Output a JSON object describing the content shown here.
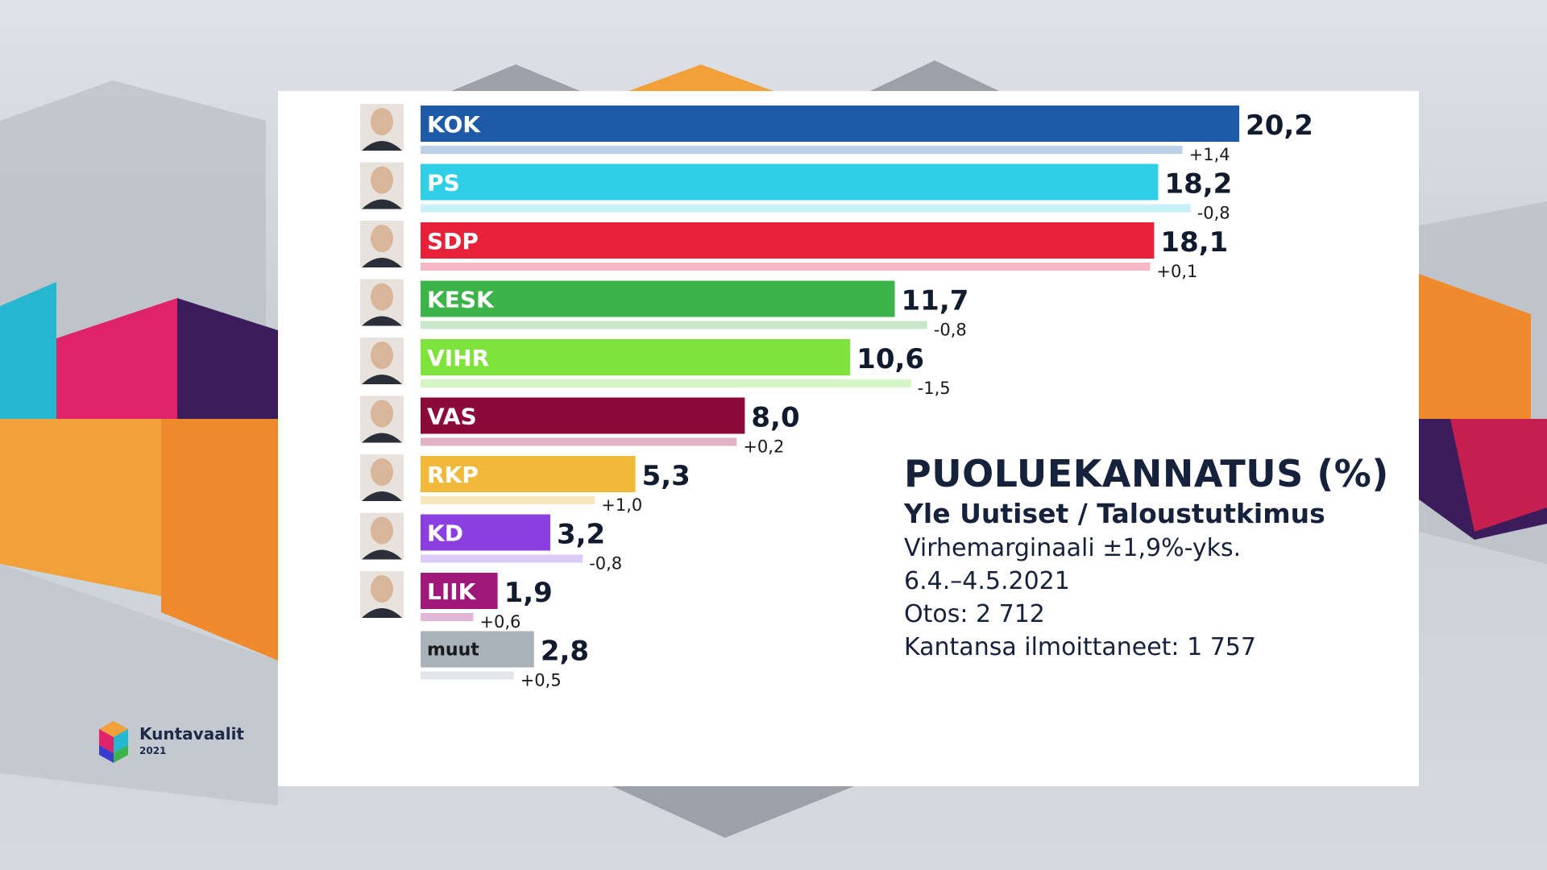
{
  "info": {
    "title": "PUOLUEKANNATUS (%)",
    "source": "Yle Uutiset / Taloustutkimus",
    "margin": "Virhemarginaali ±1,9%-yks.",
    "period": "6.4.–4.5.2021",
    "sample": "Otos: 2 712",
    "declared": "Kantansa ilmoittaneet: 1 757"
  },
  "logo": {
    "name": "Kuntavaalit",
    "year": "2021"
  },
  "chart_data": {
    "type": "bar",
    "orientation": "horizontal",
    "categories": [
      "KOK",
      "PS",
      "SDP",
      "KESK",
      "VIHR",
      "VAS",
      "RKP",
      "KD",
      "LIIK",
      "muut"
    ],
    "values": [
      20.2,
      18.2,
      18.1,
      11.7,
      10.6,
      8.0,
      5.3,
      3.2,
      1.9,
      2.8
    ],
    "value_labels": [
      "20,2",
      "18,2",
      "18,1",
      "11,7",
      "10,6",
      "8,0",
      "5,3",
      "3,2",
      "1,9",
      "2,8"
    ],
    "changes": [
      1.4,
      -0.8,
      0.1,
      -0.8,
      -1.5,
      0.2,
      1.0,
      -0.8,
      0.6,
      0.5
    ],
    "change_labels": [
      "+1,4",
      "-0,8",
      "+0,1",
      "-0,8",
      "-1,5",
      "+0,2",
      "+1,0",
      "-0,8",
      "+0,6",
      "+0,5"
    ],
    "colors": [
      "#1f5aa8",
      "#2fd0e6",
      "#e8213a",
      "#3cb44a",
      "#7ee33b",
      "#8c0a3a",
      "#f0b93a",
      "#8c3fe0",
      "#a0197a",
      "#a9b2b8"
    ],
    "prev_colors": [
      "#bcd0ea",
      "#c8f0f6",
      "#f4b9c4",
      "#c8e8c9",
      "#d5f5c2",
      "#e2b3c7",
      "#f8e6bd",
      "#dccbf6",
      "#e3b6d6",
      "#e1e5e8"
    ],
    "xlim": [
      0,
      22
    ]
  }
}
